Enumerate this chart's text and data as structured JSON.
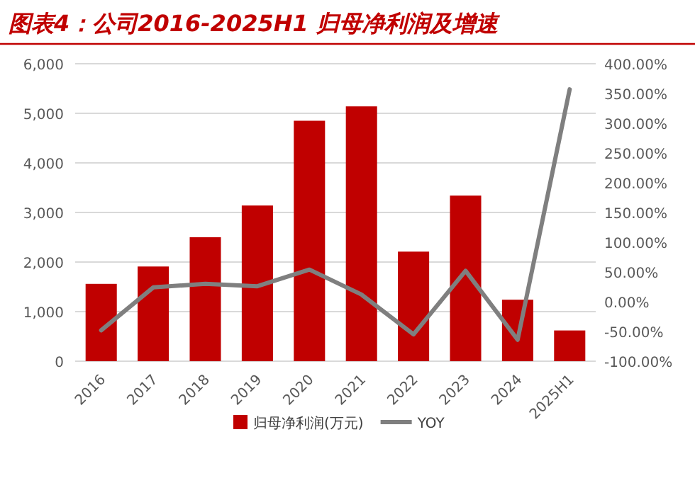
{
  "chart_data": {
    "type": "bar",
    "title": "图表4：公司2016-2025H1 归母净利润及增速",
    "categories": [
      "2016",
      "2017",
      "2018",
      "2019",
      "2020",
      "2021",
      "2022",
      "2023",
      "2024",
      "2025H1"
    ],
    "series": [
      {
        "name": "归母净利润(万元)",
        "color": "#c00000",
        "values": [
          1560,
          1910,
          2500,
          3140,
          4850,
          5140,
          2210,
          3340,
          1240,
          620
        ]
      },
      {
        "name": "YOY",
        "type": "line",
        "axis": "y2",
        "color": "#7f7f7f",
        "values": [
          -48,
          24,
          30,
          26,
          54,
          12,
          -55,
          52,
          -64,
          357
        ]
      }
    ],
    "ylim": [
      0,
      6000
    ],
    "yticks": [
      {
        "value": 0,
        "label": "0"
      },
      {
        "value": 1000,
        "label": "1,000"
      },
      {
        "value": 2000,
        "label": "2,000"
      },
      {
        "value": 3000,
        "label": "3,000"
      },
      {
        "value": 4000,
        "label": "4,000"
      },
      {
        "value": 5000,
        "label": "5,000"
      },
      {
        "value": 6000,
        "label": "6,000"
      }
    ],
    "y2lim": [
      -100,
      400
    ],
    "y2ticks": [
      {
        "value": -100,
        "label": "-100.00%"
      },
      {
        "value": -50,
        "label": "-50.00%"
      },
      {
        "value": 0,
        "label": "0.00%"
      },
      {
        "value": 50,
        "label": "50.00%"
      },
      {
        "value": 100,
        "label": "100.00%"
      },
      {
        "value": 150,
        "label": "150.00%"
      },
      {
        "value": 200,
        "label": "200.00%"
      },
      {
        "value": 250,
        "label": "250.00%"
      },
      {
        "value": 300,
        "label": "300.00%"
      },
      {
        "value": 350,
        "label": "350.00%"
      },
      {
        "value": 400,
        "label": "400.00%"
      }
    ],
    "grid": "y",
    "legend": "bottom"
  }
}
